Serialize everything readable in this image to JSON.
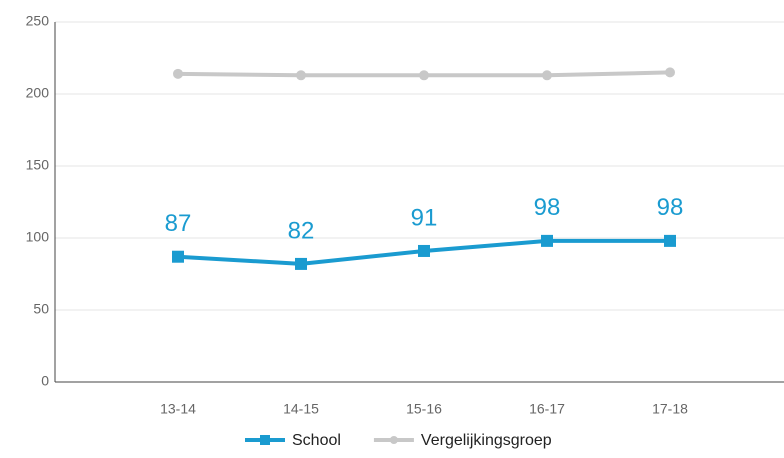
{
  "chart_data": {
    "type": "line",
    "categories": [
      "13-14",
      "14-15",
      "15-16",
      "16-17",
      "17-18"
    ],
    "series": [
      {
        "name": "School",
        "color": "#1a9bd0",
        "values": [
          87,
          82,
          91,
          98,
          98
        ],
        "marker": "square",
        "data_labels": true
      },
      {
        "name": "Vergelijkingsgroep",
        "color": "#c8c8c8",
        "values": [
          214,
          213,
          213,
          213,
          215
        ],
        "marker": "circle",
        "data_labels": false
      }
    ],
    "ylim": [
      0,
      250
    ],
    "yticks": [
      0,
      50,
      100,
      150,
      200,
      250
    ],
    "grid": true,
    "legend": "bottom"
  }
}
